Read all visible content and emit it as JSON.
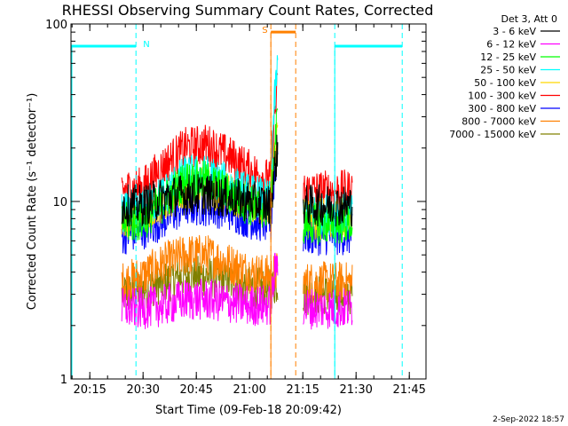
{
  "chart_data": {
    "type": "line",
    "title": "RHESSI Observing Summary Count Rates, Corrected",
    "xlabel": "Start Time (09-Feb-18 20:09:42)",
    "ylabel": "Corrected Count Rate (s⁻¹ detector⁻¹)",
    "yscale": "log",
    "ylim": [
      1,
      100
    ],
    "xlim": [
      "20:09:42",
      "21:49:42"
    ],
    "x_ticks": [
      "20:15",
      "20:30",
      "20:45",
      "21:00",
      "21:15",
      "21:30",
      "21:45"
    ],
    "y_ticks": [
      "1",
      "10",
      "100"
    ],
    "x_tick_minutes": [
      15,
      30,
      45,
      60,
      75,
      90,
      105
    ],
    "grid": false,
    "legend_position": "top-right",
    "legend_title": "Det 3, Att 0",
    "data_gaps": [
      [
        "21:08",
        "21:15"
      ]
    ],
    "series": [
      {
        "name": "3 - 6 keV",
        "color": "#000000",
        "x": [
          "20:24",
          "20:30",
          "20:36",
          "20:42",
          "20:48",
          "20:54",
          "21:00",
          "21:06",
          "21:08",
          "21:15",
          "21:20",
          "21:25",
          "21:29"
        ],
        "values": [
          9.5,
          9.5,
          10.5,
          11,
          11,
          10.5,
          10,
          9.5,
          20,
          9.5,
          9.5,
          9.5,
          9.5
        ]
      },
      {
        "name": "6 - 12 keV",
        "color": "#ff00ff",
        "x": [
          "20:24",
          "20:30",
          "20:36",
          "20:42",
          "20:48",
          "20:54",
          "21:00",
          "21:06",
          "21:08",
          "21:15",
          "21:20",
          "21:25",
          "21:29"
        ],
        "values": [
          2.5,
          2.5,
          2.6,
          2.8,
          2.8,
          2.7,
          2.6,
          2.6,
          5,
          2.5,
          2.5,
          2.5,
          2.5
        ]
      },
      {
        "name": "12 - 25 keV",
        "color": "#00ff00",
        "x": [
          "20:24",
          "20:30",
          "20:36",
          "20:42",
          "20:48",
          "20:54",
          "21:00",
          "21:06",
          "21:08",
          "21:15",
          "21:20",
          "21:25",
          "21:29"
        ],
        "values": [
          7.5,
          7.8,
          10,
          13,
          13,
          11,
          9.5,
          9,
          30,
          7.5,
          7.5,
          7.5,
          7.5
        ]
      },
      {
        "name": "25 - 50 keV",
        "color": "#00ffff",
        "x": [
          "20:24",
          "20:30",
          "20:36",
          "20:42",
          "20:48",
          "20:54",
          "21:00",
          "21:06",
          "21:08",
          "21:15",
          "21:20",
          "21:25",
          "21:29"
        ],
        "values": [
          8.5,
          8.8,
          11,
          14,
          14,
          12.5,
          11,
          10,
          60,
          8.5,
          8.5,
          8.5,
          8.5
        ]
      },
      {
        "name": "50 - 100 keV",
        "color": "#ffd700",
        "x": [
          "20:24",
          "20:30",
          "20:36",
          "20:42",
          "20:48",
          "20:54",
          "21:00",
          "21:06",
          "21:08",
          "21:15",
          "21:20",
          "21:25",
          "21:29"
        ],
        "values": [
          8,
          8.5,
          10,
          12,
          12,
          11,
          10,
          9.5,
          25,
          8,
          8,
          8,
          8
        ]
      },
      {
        "name": "100 - 300 keV",
        "color": "#ff0000",
        "x": [
          "20:24",
          "20:30",
          "20:36",
          "20:42",
          "20:48",
          "20:54",
          "21:00",
          "21:06",
          "21:08",
          "21:15",
          "21:20",
          "21:25",
          "21:29"
        ],
        "values": [
          11.5,
          12,
          16,
          20,
          21,
          18,
          15,
          13,
          45,
          11.5,
          11.5,
          11.5,
          11.5
        ]
      },
      {
        "name": "300 - 800 keV",
        "color": "#0000ff",
        "x": [
          "20:24",
          "20:30",
          "20:36",
          "20:42",
          "20:48",
          "20:54",
          "21:00",
          "21:06",
          "21:08",
          "21:15",
          "21:20",
          "21:25",
          "21:29"
        ],
        "values": [
          6.5,
          7,
          8,
          9.5,
          9.5,
          9,
          8,
          7.5,
          20,
          6.5,
          6.5,
          6.5,
          6.5
        ]
      },
      {
        "name": "800 - 7000 keV",
        "color": "#ff8000",
        "x": [
          "20:24",
          "20:30",
          "20:36",
          "20:42",
          "20:48",
          "20:54",
          "21:00",
          "21:06",
          "21:08",
          "21:15",
          "21:20",
          "21:25",
          "21:29"
        ],
        "values": [
          3.5,
          3.8,
          4.5,
          5,
          5,
          4.5,
          4,
          3.8,
          4,
          3.5,
          3.5,
          3.5,
          3.5
        ]
      },
      {
        "name": "7000 - 15000 keV",
        "color": "#808000",
        "x": [
          "20:24",
          "20:30",
          "20:36",
          "20:42",
          "20:48",
          "20:54",
          "21:00",
          "21:06",
          "21:08",
          "21:15",
          "21:20",
          "21:25",
          "21:29"
        ],
        "values": [
          3,
          3.2,
          3.5,
          3.8,
          3.8,
          3.5,
          3.3,
          3.2,
          3.5,
          3,
          3,
          3,
          3
        ]
      }
    ],
    "annotations": [
      {
        "label": "N",
        "color": "#00ffff",
        "start": "20:09:42",
        "end": "20:28",
        "level": 75,
        "markers": [
          "20:28"
        ]
      },
      {
        "label": "",
        "color": "#00ffff",
        "start": "21:24",
        "end": "21:43",
        "level": 75,
        "markers": [
          "21:24",
          "21:43"
        ]
      },
      {
        "label": "S",
        "color": "#ff8000",
        "start": "21:06",
        "end": "21:13",
        "level": 90,
        "markers": [
          "21:06",
          "21:13"
        ]
      }
    ]
  },
  "footer": {
    "date": "2-Sep-2022 18:57"
  }
}
